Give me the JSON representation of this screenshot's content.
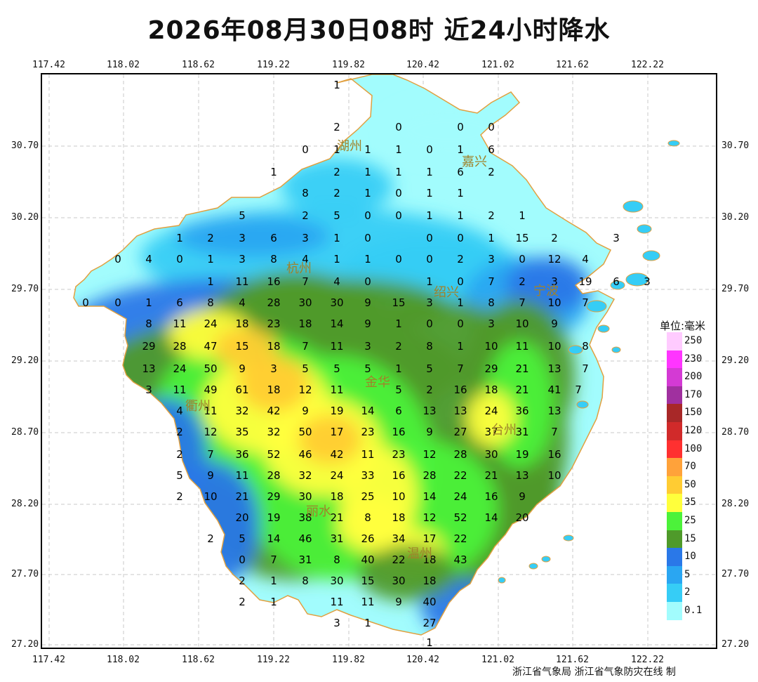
{
  "title": "2026年08月30日08时  近24小时降水",
  "credit": "浙江省气象局 浙江省气象防灾在线 制",
  "axes": {
    "lon_ticks": [
      "117.42",
      "118.02",
      "118.62",
      "119.22",
      "119.82",
      "120.42",
      "121.02",
      "121.62",
      "122.22"
    ],
    "lat_ticks": [
      "30.70",
      "30.20",
      "29.70",
      "29.20",
      "28.70",
      "28.20",
      "27.70",
      "27.20"
    ]
  },
  "legend": {
    "title": "单位:毫米",
    "items": [
      {
        "label": "250",
        "color": "#ffcbff"
      },
      {
        "label": "230",
        "color": "#ff35ff"
      },
      {
        "label": "200",
        "color": "#d43ad4"
      },
      {
        "label": "170",
        "color": "#a0309f"
      },
      {
        "label": "150",
        "color": "#a82828"
      },
      {
        "label": "120",
        "color": "#d12a2a"
      },
      {
        "label": "100",
        "color": "#ff3030"
      },
      {
        "label": "70",
        "color": "#ffa23a"
      },
      {
        "label": "50",
        "color": "#ffcc33"
      },
      {
        "label": "35",
        "color": "#ffff3c"
      },
      {
        "label": "25",
        "color": "#4cf23a"
      },
      {
        "label": "15",
        "color": "#4f9a2a"
      },
      {
        "label": "10",
        "color": "#2a78e8"
      },
      {
        "label": "5",
        "color": "#2aa6f2"
      },
      {
        "label": "2",
        "color": "#36cdf6"
      },
      {
        "label": "0.1",
        "color": "#a2fcfd"
      }
    ]
  },
  "cities": [
    "湖州",
    "嘉兴",
    "杭州",
    "绍兴",
    "宁波",
    "衢州",
    "金华",
    "台州",
    "丽水",
    "温州"
  ],
  "station_values": [
    "1",
    "2",
    "0",
    "0",
    "0",
    "0",
    "1",
    "1",
    "1",
    "0",
    "1",
    "6",
    "1",
    "2",
    "1",
    "1",
    "1",
    "6",
    "2",
    "8",
    "2",
    "1",
    "0",
    "1",
    "1",
    "5",
    "2",
    "5",
    "0",
    "0",
    "1",
    "1",
    "2",
    "1",
    "1",
    "2",
    "3",
    "6",
    "3",
    "1",
    "0",
    "0",
    "0",
    "1",
    "15",
    "2",
    "3",
    "0",
    "4",
    "0",
    "1",
    "3",
    "8",
    "4",
    "1",
    "1",
    "0",
    "0",
    "2",
    "3",
    "0",
    "12",
    "4",
    "1",
    "11",
    "16",
    "7",
    "4",
    "0",
    "1",
    "0",
    "7",
    "2",
    "3",
    "19",
    "6",
    "3",
    "0",
    "0",
    "1",
    "6",
    "8",
    "4",
    "28",
    "30",
    "30",
    "9",
    "15",
    "3",
    "1",
    "8",
    "7",
    "10",
    "7",
    "8",
    "11",
    "24",
    "18",
    "23",
    "18",
    "14",
    "9",
    "1",
    "0",
    "0",
    "3",
    "10",
    "9",
    "29",
    "28",
    "47",
    "15",
    "18",
    "7",
    "11",
    "3",
    "2",
    "8",
    "1",
    "10",
    "11",
    "10",
    "8",
    "13",
    "24",
    "50",
    "9",
    "3",
    "5",
    "5",
    "5",
    "1",
    "5",
    "7",
    "29",
    "21",
    "13",
    "7",
    "3",
    "11",
    "49",
    "61",
    "18",
    "12",
    "11",
    "5",
    "2",
    "16",
    "18",
    "21",
    "41",
    "7",
    "4",
    "11",
    "32",
    "42",
    "9",
    "19",
    "14",
    "6",
    "13",
    "13",
    "24",
    "36",
    "13",
    "2",
    "12",
    "35",
    "32",
    "50",
    "17",
    "23",
    "16",
    "9",
    "27",
    "37",
    "31",
    "7",
    "2",
    "7",
    "36",
    "52",
    "46",
    "42",
    "11",
    "23",
    "12",
    "28",
    "30",
    "19",
    "16",
    "5",
    "9",
    "11",
    "28",
    "32",
    "24",
    "33",
    "16",
    "28",
    "22",
    "21",
    "13",
    "10",
    "2",
    "10",
    "21",
    "29",
    "30",
    "18",
    "25",
    "10",
    "14",
    "24",
    "16",
    "9",
    "20",
    "19",
    "38",
    "21",
    "8",
    "18",
    "12",
    "52",
    "14",
    "20",
    "2",
    "5",
    "14",
    "46",
    "31",
    "26",
    "34",
    "17",
    "22",
    "0",
    "7",
    "31",
    "8",
    "40",
    "22",
    "18",
    "43",
    "2",
    "1",
    "8",
    "30",
    "15",
    "30",
    "18",
    "2",
    "1",
    "11",
    "11",
    "9",
    "40",
    "3",
    "1",
    "27",
    "1"
  ]
}
